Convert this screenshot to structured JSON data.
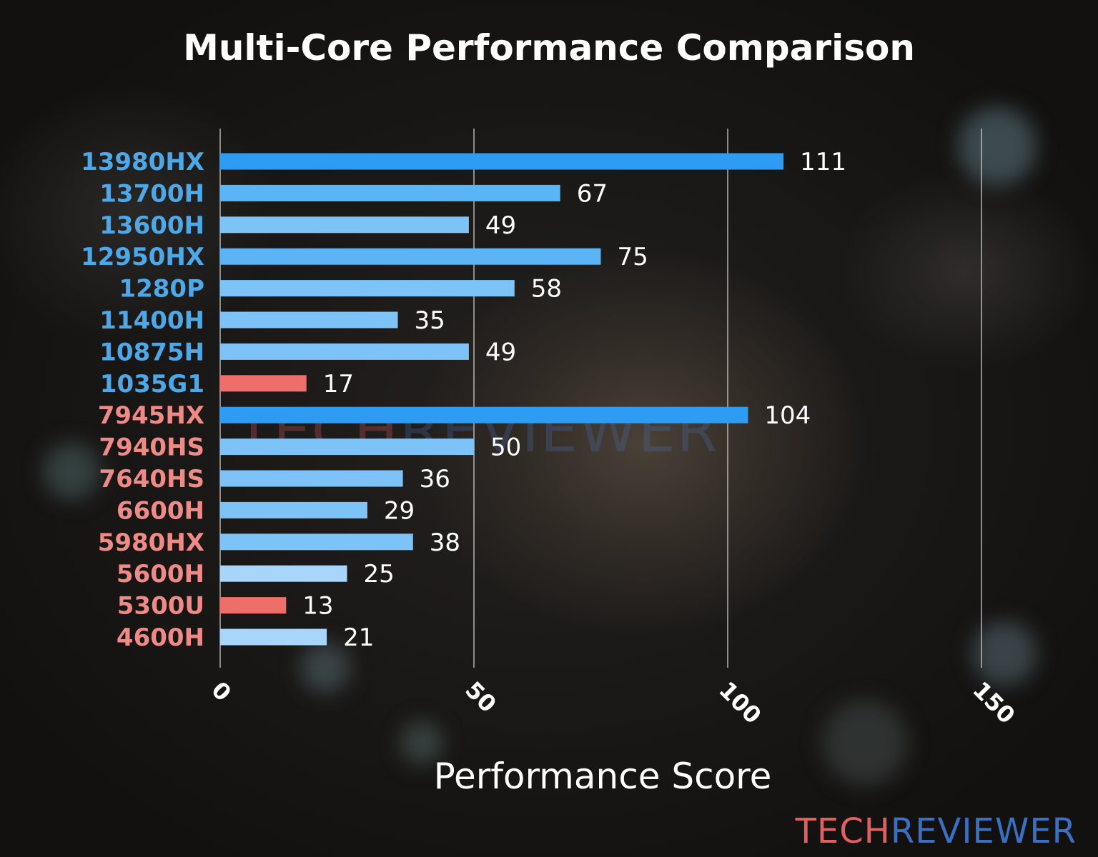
{
  "title": "Multi-Core Performance Comparison",
  "watermark": {
    "part1": "TECH",
    "part2": "REVIEWER",
    "color1": "#e06060",
    "color2": "#4a6fb0"
  },
  "logo": {
    "part1": "TECH",
    "part2": "REVIEWER",
    "color1": "#e06060",
    "color2": "#3a6fc4"
  },
  "colors": {
    "intel_label": "#4ea8e8",
    "amd_label": "#f08a86",
    "bar_top": "#2e9cf2",
    "bar_high": "#5ab4f6",
    "bar_mid": "#7ec3f8",
    "bar_low": "#a8d6fb",
    "bar_red": "#ee6e6a"
  },
  "chart_data": {
    "type": "bar",
    "orientation": "horizontal",
    "title": "Multi-Core Performance Comparison",
    "xlabel": "Performance Score",
    "ylabel": "",
    "xlim": [
      0,
      150
    ],
    "xticks": [
      0,
      50,
      100,
      150
    ],
    "grid": true,
    "categories": [
      "13980HX",
      "13700H",
      "13600H",
      "12950HX",
      "1280P",
      "11400H",
      "10875H",
      "1035G1",
      "7945HX",
      "7940HS",
      "7640HS",
      "6600H",
      "5980HX",
      "5600H",
      "5300U",
      "4600H"
    ],
    "values": [
      111,
      67,
      49,
      75,
      58,
      35,
      49,
      17,
      104,
      50,
      36,
      29,
      38,
      25,
      13,
      21
    ],
    "label_colors": [
      "intel",
      "intel",
      "intel",
      "intel",
      "intel",
      "intel",
      "intel",
      "intel",
      "amd",
      "amd",
      "amd",
      "amd",
      "amd",
      "amd",
      "amd",
      "amd"
    ],
    "bar_colors": [
      "top",
      "high",
      "mid",
      "high",
      "mid",
      "mid",
      "mid",
      "red",
      "top",
      "mid",
      "mid",
      "mid",
      "mid",
      "low",
      "red",
      "low"
    ]
  }
}
